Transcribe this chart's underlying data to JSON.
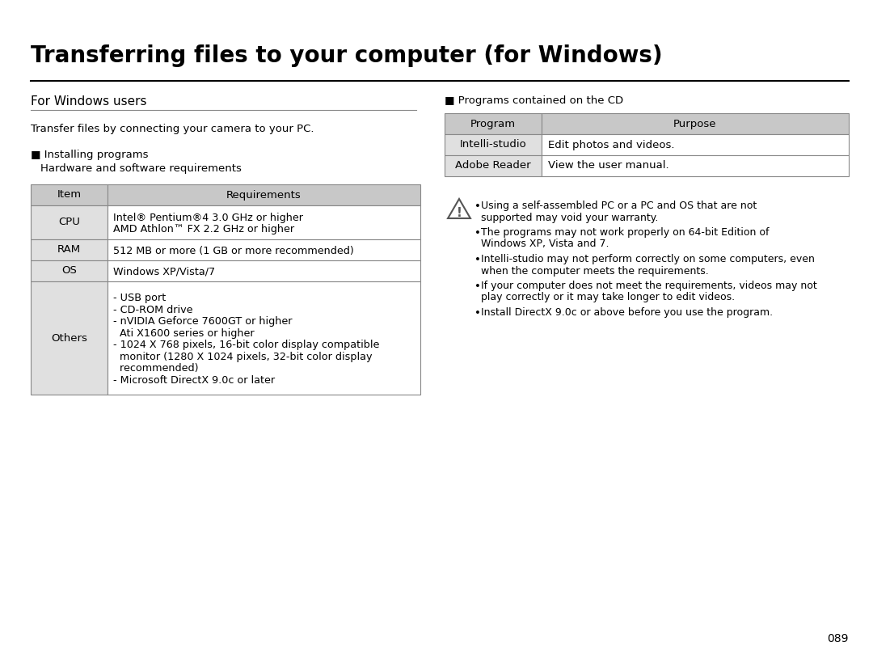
{
  "title": "Transferring files to your computer (for Windows)",
  "bg_color": "#ffffff",
  "left_section_title": "For Windows users",
  "intro_text": "Transfer files by connecting your camera to your PC.",
  "installing_header": "■ Installing programs",
  "hw_sw_text": "  Hardware and software requirements",
  "left_table_header": [
    "Item",
    "Requirements"
  ],
  "left_table_rows": [
    [
      "CPU",
      "Intel® Pentium®4 3.0 GHz or higher\nAMD Athlon™ FX 2.2 GHz or higher"
    ],
    [
      "RAM",
      "512 MB or more (1 GB or more recommended)"
    ],
    [
      "OS",
      "Windows XP/Vista/7"
    ],
    [
      "Others",
      "- USB port\n- CD-ROM drive\n- nVIDIA Geforce 7600GT or higher\n  Ati X1600 series or higher\n- 1024 X 768 pixels, 16-bit color display compatible\n  monitor (1280 X 1024 pixels, 32-bit color display\n  recommended)\n- Microsoft DirectX 9.0c or later"
    ]
  ],
  "right_section_header": "■ Programs contained on the CD",
  "right_table_header": [
    "Program",
    "Purpose"
  ],
  "right_table_rows": [
    [
      "Intelli-studio",
      "Edit photos and videos."
    ],
    [
      "Adobe Reader",
      "View the user manual."
    ]
  ],
  "warning_bullets": [
    "Using a self-assembled PC or a PC and OS that are not\nsupported may void your warranty.",
    "The programs may not work properly on 64-bit Edition of\nWindows XP, Vista and 7.",
    "Intelli-studio may not perform correctly on some computers, even\nwhen the computer meets the requirements.",
    "If your computer does not meet the requirements, videos may not\nplay correctly or it may take longer to edit videos.",
    "Install DirectX 9.0c or above before you use the program."
  ],
  "page_number": "089",
  "table_header_bg": "#c8c8c8",
  "table_row_bg_gray": "#e0e0e0",
  "table_row_bg_white": "#ffffff",
  "table_border_color": "#888888",
  "title_font_size": 20,
  "section_font_size": 11,
  "body_font_size": 9.5,
  "table_font_size": 9.5
}
